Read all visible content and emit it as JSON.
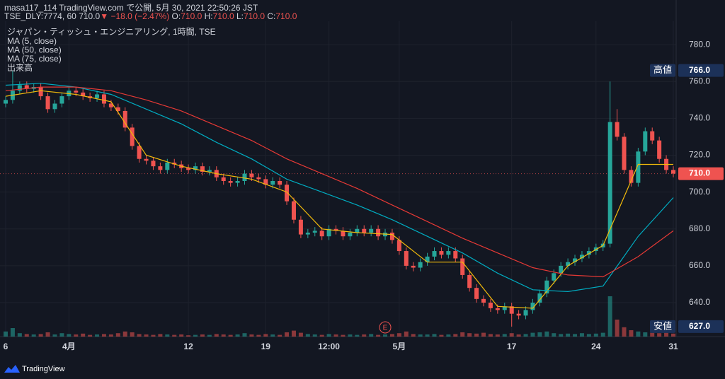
{
  "header": {
    "publisher": "masa117_114 TradingView.com で公開, 5月 30, 2021 22:50:26 JST",
    "symbol": "TSE_DLY:7774, 60",
    "price": "710.0",
    "arrow": "▼",
    "change": "−18.0 (−2.47%)",
    "ohlc": [
      {
        "key": "O:",
        "value": "710.0"
      },
      {
        "key": "H:",
        "value": "710.0"
      },
      {
        "key": "L:",
        "value": "710.0"
      },
      {
        "key": "C:",
        "value": "710.0"
      }
    ]
  },
  "footer": {
    "brand": "TradingView"
  },
  "chart_data": {
    "type": "candlestick",
    "title": "ジャパン・ティッシュ・エンジニアリング, 1時間, TSE",
    "up_color": "#26a69a",
    "down_color": "#ef5350",
    "grid": true,
    "xlim": [
      0,
      95
    ],
    "xticks": [
      {
        "value": 0,
        "label": "6"
      },
      {
        "value": 9,
        "label": "4月"
      },
      {
        "value": 26,
        "label": "12"
      },
      {
        "value": 37,
        "label": "19"
      },
      {
        "value": 46,
        "label": "12:00"
      },
      {
        "value": 56,
        "label": "5月"
      },
      {
        "value": 72,
        "label": "17"
      },
      {
        "value": 84,
        "label": "24"
      },
      {
        "value": 95,
        "label": "31"
      }
    ],
    "ylim": [
      621.6,
      792.7
    ],
    "yticks": [
      {
        "value": 640,
        "label": "640.0"
      },
      {
        "value": 660,
        "label": "660.0"
      },
      {
        "value": 680,
        "label": "680.0"
      },
      {
        "value": 700,
        "label": "700.0"
      },
      {
        "value": 720,
        "label": "720.0"
      },
      {
        "value": 740,
        "label": "740.0"
      },
      {
        "value": 760,
        "label": "760.0"
      },
      {
        "value": 780,
        "label": "780.0"
      }
    ],
    "open": [
      748,
      750,
      755,
      758,
      756,
      757,
      752,
      745,
      748,
      752,
      755,
      754,
      752,
      751,
      753,
      748,
      746,
      744,
      735,
      725,
      718,
      717,
      714,
      712,
      716,
      715,
      713,
      712,
      714,
      711,
      712,
      708,
      706,
      705,
      706,
      710,
      708,
      707,
      704,
      706,
      704,
      695,
      685,
      677,
      678,
      679,
      676,
      680,
      679,
      676,
      678,
      680,
      678,
      680,
      676,
      678,
      674,
      668,
      660,
      659,
      662,
      665,
      668,
      666,
      668,
      664,
      655,
      648,
      642,
      640,
      637,
      636,
      638,
      634,
      633,
      636,
      640,
      645,
      652,
      656,
      660,
      662,
      664,
      666,
      668,
      670,
      672,
      738,
      730,
      712,
      705,
      722,
      733,
      728,
      718,
      712
    ],
    "high": [
      752,
      766,
      760,
      760,
      759,
      759,
      754,
      750,
      754,
      757,
      757,
      756,
      754,
      755,
      755,
      750,
      748,
      746,
      737,
      727,
      720,
      719,
      716,
      718,
      718,
      717,
      715,
      716,
      716,
      714,
      714,
      710,
      708,
      708,
      712,
      712,
      710,
      709,
      708,
      708,
      706,
      697,
      687,
      680,
      681,
      681,
      682,
      682,
      681,
      680,
      682,
      682,
      682,
      682,
      680,
      680,
      676,
      670,
      662,
      664,
      667,
      670,
      670,
      670,
      670,
      666,
      657,
      650,
      644,
      642,
      639,
      640,
      640,
      636,
      638,
      642,
      647,
      654,
      658,
      662,
      664,
      666,
      668,
      670,
      672,
      674,
      760,
      745,
      732,
      714,
      724,
      735,
      735,
      730,
      720,
      714
    ],
    "low": [
      746,
      748,
      753,
      754,
      754,
      750,
      743,
      743,
      746,
      750,
      752,
      750,
      749,
      749,
      746,
      744,
      742,
      733,
      723,
      716,
      715,
      712,
      710,
      710,
      713,
      711,
      710,
      710,
      709,
      709,
      706,
      704,
      703,
      703,
      704,
      706,
      705,
      702,
      702,
      702,
      693,
      683,
      675,
      675,
      676,
      674,
      674,
      677,
      674,
      674,
      676,
      676,
      676,
      674,
      674,
      672,
      666,
      658,
      657,
      657,
      660,
      663,
      664,
      664,
      662,
      653,
      646,
      640,
      638,
      635,
      634,
      634,
      627,
      631,
      631,
      634,
      638,
      643,
      650,
      654,
      658,
      660,
      662,
      664,
      666,
      668,
      670,
      728,
      710,
      703,
      703,
      720,
      726,
      716,
      710,
      708
    ],
    "close": [
      750,
      755,
      758,
      756,
      757,
      752,
      745,
      748,
      752,
      755,
      754,
      752,
      751,
      753,
      748,
      746,
      744,
      735,
      725,
      718,
      717,
      714,
      712,
      716,
      715,
      713,
      712,
      714,
      711,
      712,
      708,
      706,
      705,
      706,
      710,
      708,
      707,
      704,
      706,
      704,
      695,
      685,
      677,
      678,
      679,
      676,
      680,
      679,
      676,
      678,
      680,
      678,
      680,
      676,
      678,
      674,
      668,
      660,
      659,
      662,
      665,
      668,
      666,
      668,
      664,
      655,
      648,
      642,
      640,
      637,
      636,
      638,
      634,
      633,
      636,
      640,
      645,
      652,
      656,
      660,
      662,
      664,
      666,
      668,
      670,
      672,
      738,
      730,
      712,
      705,
      722,
      733,
      728,
      718,
      712,
      710
    ],
    "volume": {
      "name": "出来高",
      "ylim": [
        0,
        100
      ],
      "values": [
        12,
        20,
        8,
        6,
        5,
        6,
        10,
        5,
        8,
        6,
        5,
        7,
        4,
        5,
        6,
        5,
        8,
        12,
        10,
        6,
        5,
        4,
        6,
        5,
        4,
        5,
        3,
        4,
        5,
        4,
        6,
        5,
        4,
        5,
        8,
        5,
        4,
        6,
        5,
        4,
        10,
        14,
        9,
        6,
        5,
        4,
        6,
        5,
        4,
        5,
        4,
        5,
        6,
        4,
        5,
        6,
        8,
        12,
        6,
        5,
        5,
        6,
        4,
        5,
        6,
        10,
        8,
        7,
        9,
        6,
        5,
        6,
        8,
        5,
        6,
        9,
        10,
        12,
        8,
        6,
        7,
        6,
        8,
        6,
        7,
        9,
        95,
        40,
        22,
        15,
        12,
        10,
        9,
        8,
        10,
        7
      ]
    },
    "moving_averages": [
      {
        "name": "MA (5, close)",
        "color": "#f0b90b",
        "x": [
          0,
          5,
          10,
          15,
          20,
          25,
          30,
          35,
          40,
          45,
          50,
          55,
          60,
          65,
          70,
          75,
          80,
          85,
          90,
          95
        ],
        "values": [
          752,
          755,
          753,
          749,
          720,
          714,
          710,
          707,
          700,
          680,
          678,
          677,
          662,
          662,
          638,
          637,
          660,
          671,
          715,
          715
        ]
      },
      {
        "name": "MA (50, close)",
        "color": "#00acc1",
        "x": [
          0,
          5,
          10,
          15,
          20,
          25,
          30,
          35,
          40,
          45,
          50,
          55,
          60,
          65,
          70,
          75,
          80,
          85,
          90,
          95
        ],
        "values": [
          758,
          759,
          757,
          753,
          745,
          737,
          727,
          718,
          707,
          700,
          693,
          685,
          676,
          667,
          656,
          647,
          646,
          649,
          676,
          697
        ]
      },
      {
        "name": "MA (75, close)",
        "color": "#e53935",
        "x": [
          0,
          5,
          10,
          15,
          20,
          25,
          30,
          35,
          40,
          45,
          50,
          55,
          60,
          65,
          70,
          75,
          80,
          85,
          90,
          95
        ],
        "values": [
          755,
          757,
          757,
          755,
          750,
          744,
          736,
          728,
          718,
          710,
          702,
          693,
          684,
          675,
          667,
          659,
          655,
          654,
          665,
          679
        ]
      }
    ],
    "high_marker": {
      "name": "高値",
      "price": {
        "value": 766,
        "label": "766.0"
      }
    },
    "low_marker": {
      "name": "安値",
      "price": {
        "value": 627,
        "label": "627.0"
      }
    },
    "last_price": {
      "value": 710,
      "label": "710.0",
      "color": "#ef5350"
    },
    "annotations": [
      {
        "text": "E",
        "x": 54
      }
    ]
  }
}
